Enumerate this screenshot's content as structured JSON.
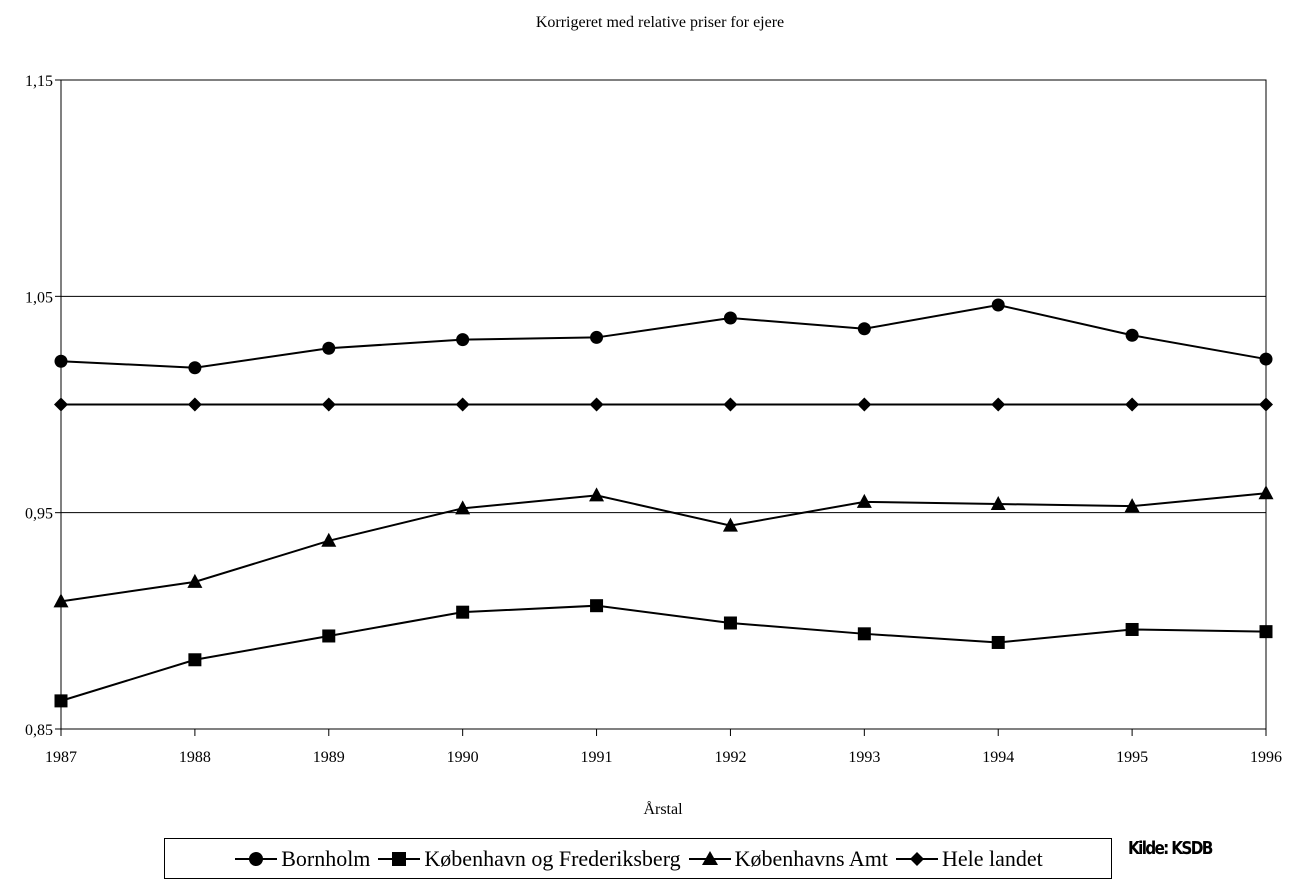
{
  "chart_data": {
    "type": "line",
    "title": "Korrigeret med relative priser for ejere",
    "xlabel": "Årstal",
    "ylabel": "",
    "x": [
      1987,
      1988,
      1989,
      1990,
      1991,
      1992,
      1993,
      1994,
      1995,
      1996
    ],
    "x_tick_labels": [
      "1987",
      "1988",
      "1989",
      "1990",
      "1991",
      "1992",
      "1993",
      "1994",
      "1995",
      "1996"
    ],
    "ylim": [
      0.85,
      1.15
    ],
    "y_ticks": [
      0.85,
      0.95,
      1.05,
      1.15
    ],
    "y_tick_labels": [
      "0,85",
      "0,95",
      "1,05",
      "1,15"
    ],
    "grid": "horizontal",
    "legend_position": "bottom",
    "series": [
      {
        "name": "Bornholm",
        "marker": "circle",
        "color": "#000000",
        "values": [
          1.02,
          1.017,
          1.026,
          1.03,
          1.031,
          1.04,
          1.035,
          1.046,
          1.032,
          1.021
        ]
      },
      {
        "name": "København og Frederiksberg",
        "marker": "square",
        "color": "#000000",
        "values": [
          0.863,
          0.882,
          0.893,
          0.904,
          0.907,
          0.899,
          0.894,
          0.89,
          0.896,
          0.895
        ]
      },
      {
        "name": "Københavns Amt",
        "marker": "triangle",
        "color": "#000000",
        "values": [
          0.909,
          0.918,
          0.937,
          0.952,
          0.958,
          0.944,
          0.955,
          0.954,
          0.953,
          0.959
        ]
      },
      {
        "name": "Hele landet",
        "marker": "diamond",
        "color": "#000000",
        "values": [
          1.0,
          1.0,
          1.0,
          1.0,
          1.0,
          1.0,
          1.0,
          1.0,
          1.0,
          1.0
        ]
      }
    ]
  },
  "source_label": "Kilde: KSDB"
}
